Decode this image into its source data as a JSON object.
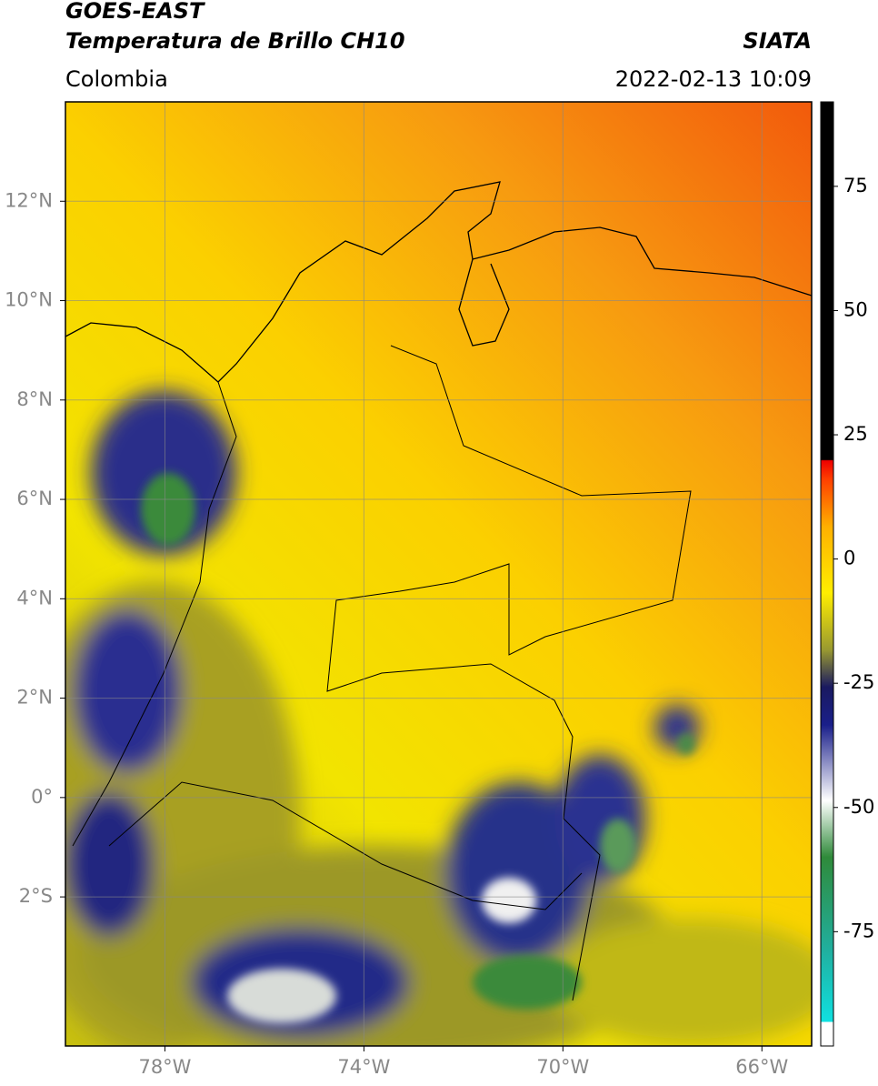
{
  "header": {
    "title_line1": "GOES-EAST",
    "title_line2": "Temperatura de Brillo CH10",
    "source": "SIATA",
    "region": "Colombia",
    "datetime": "2022-02-13 10:09"
  },
  "map": {
    "xlim": [
      -80,
      -65
    ],
    "ylim": [
      -5,
      14
    ],
    "xticks": [
      {
        "value": -78,
        "label": "78°W"
      },
      {
        "value": -74,
        "label": "74°W"
      },
      {
        "value": -70,
        "label": "70°W"
      },
      {
        "value": -66,
        "label": "66°W"
      }
    ],
    "yticks": [
      {
        "value": 12,
        "label": "12°N"
      },
      {
        "value": 10,
        "label": "10°N"
      },
      {
        "value": 8,
        "label": "8°N"
      },
      {
        "value": 6,
        "label": "6°N"
      },
      {
        "value": 4,
        "label": "4°N"
      },
      {
        "value": 2,
        "label": "2°N"
      },
      {
        "value": 0,
        "label": "0°"
      },
      {
        "value": -2,
        "label": "2°S"
      }
    ],
    "grid": true
  },
  "colorbar": {
    "lim": [
      -98,
      92
    ],
    "ticks": [
      75,
      50,
      25,
      0,
      -25,
      -50,
      -75
    ]
  }
}
